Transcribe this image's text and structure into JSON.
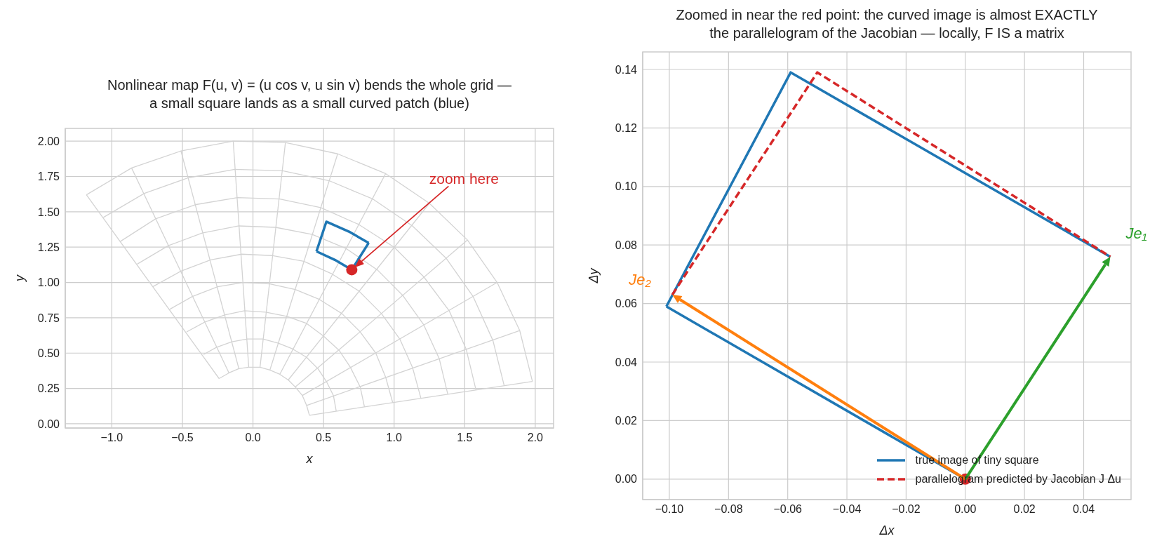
{
  "chart_data": [
    {
      "type": "line",
      "title": "Nonlinear map F(u, v) = (u cos v,  u sin v) bends the whole grid —\na small square lands as a small curved patch (blue)",
      "xlabel": "x",
      "ylabel": "y",
      "xlim": [
        -1.33,
        2.13
      ],
      "ylim": [
        -0.03,
        2.09
      ],
      "xticks": [
        {
          "value": -1,
          "label": "−1.0"
        },
        {
          "value": -0.5,
          "label": "−0.5"
        },
        {
          "value": 0,
          "label": "0.0"
        },
        {
          "value": 0.5,
          "label": "0.5"
        },
        {
          "value": 1,
          "label": "1.0"
        },
        {
          "value": 1.5,
          "label": "1.5"
        },
        {
          "value": 2,
          "label": "2.0"
        }
      ],
      "yticks": [
        {
          "value": 0,
          "label": "0.00"
        },
        {
          "value": 0.25,
          "label": "0.25"
        },
        {
          "value": 0.5,
          "label": "0.50"
        },
        {
          "value": 0.75,
          "label": "0.75"
        },
        {
          "value": 1,
          "label": "1.00"
        },
        {
          "value": 1.25,
          "label": "1.25"
        },
        {
          "value": 1.5,
          "label": "1.50"
        },
        {
          "value": 1.75,
          "label": "1.75"
        },
        {
          "value": 2,
          "label": "2.00"
        }
      ],
      "grid": true,
      "legend": false,
      "marker": "none",
      "line_style": "solid",
      "annotations": [
        "zoom here"
      ],
      "series": [
        {
          "color": "#d3d3d3",
          "x": [
            0.4,
            0.38,
            0.35,
            0.3,
            0.25,
            0.19,
            0.12,
            0.05,
            -0.03,
            -0.1,
            -0.17,
            -0.24
          ],
          "values": [
            0.06,
            0.13,
            0.2,
            0.26,
            0.31,
            0.35,
            0.38,
            0.4,
            0.4,
            0.39,
            0.36,
            0.32
          ]
        },
        {
          "color": "#d3d3d3",
          "x": [
            0.59,
            0.57,
            0.52,
            0.46,
            0.38,
            0.28,
            0.18,
            0.07,
            -0.04,
            -0.15,
            -0.26,
            -0.35
          ],
          "values": [
            0.09,
            0.2,
            0.3,
            0.39,
            0.47,
            0.53,
            0.57,
            0.6,
            0.6,
            0.58,
            0.54,
            0.49
          ]
        },
        {
          "color": "#d3d3d3",
          "x": [
            0.79,
            0.76,
            0.69,
            0.61,
            0.5,
            0.38,
            0.24,
            0.09,
            -0.06,
            -0.2,
            -0.34,
            -0.47
          ],
          "values": [
            0.12,
            0.26,
            0.4,
            0.52,
            0.62,
            0.71,
            0.76,
            0.79,
            0.8,
            0.77,
            0.72,
            0.65
          ]
        },
        {
          "color": "#d3d3d3",
          "x": [
            0.99,
            0.94,
            0.87,
            0.76,
            0.63,
            0.47,
            0.3,
            0.12,
            -0.07,
            -0.25,
            -0.43,
            -0.59
          ],
          "values": [
            0.15,
            0.33,
            0.5,
            0.65,
            0.78,
            0.88,
            0.95,
            0.99,
            1.0,
            0.97,
            0.9,
            0.81
          ]
        },
        {
          "color": "#d3d3d3",
          "x": [
            1.19,
            1.13,
            1.04,
            0.91,
            0.75,
            0.56,
            0.36,
            0.14,
            -0.08,
            -0.3,
            -0.51,
            -0.71
          ],
          "values": [
            0.18,
            0.4,
            0.6,
            0.78,
            0.94,
            1.06,
            1.15,
            1.19,
            1.2,
            1.16,
            1.08,
            0.97
          ]
        },
        {
          "color": "#d3d3d3",
          "x": [
            1.38,
            1.32,
            1.21,
            1.06,
            0.88,
            0.66,
            0.42,
            0.16,
            -0.1,
            -0.36,
            -0.6,
            -0.82
          ],
          "values": [
            0.21,
            0.46,
            0.7,
            0.91,
            1.09,
            1.24,
            1.34,
            1.39,
            1.4,
            1.35,
            1.26,
            1.13
          ]
        },
        {
          "color": "#d3d3d3",
          "x": [
            1.58,
            1.51,
            1.39,
            1.21,
            1.0,
            0.75,
            0.48,
            0.19,
            -0.11,
            -0.41,
            -0.69,
            -0.94
          ],
          "values": [
            0.24,
            0.53,
            0.8,
            1.04,
            1.25,
            1.41,
            1.53,
            1.59,
            1.6,
            1.55,
            1.45,
            1.29
          ]
        },
        {
          "color": "#d3d3d3",
          "x": [
            1.78,
            1.7,
            1.56,
            1.37,
            1.13,
            0.85,
            0.54,
            0.21,
            -0.13,
            -0.46,
            -0.77,
            -1.06
          ],
          "values": [
            0.27,
            0.59,
            0.9,
            1.17,
            1.4,
            1.59,
            1.72,
            1.79,
            1.8,
            1.74,
            1.63,
            1.46
          ]
        },
        {
          "color": "#d3d3d3",
          "x": [
            1.98,
            1.89,
            1.73,
            1.52,
            1.25,
            0.94,
            0.6,
            0.23,
            -0.14,
            -0.51,
            -0.86,
            -1.18
          ],
          "values": [
            0.3,
            0.66,
            1.0,
            1.3,
            1.56,
            1.77,
            1.91,
            1.99,
            2.0,
            1.93,
            1.81,
            1.62
          ]
        },
        {
          "color": "#d3d3d3",
          "x": [
            0.4,
            1.98
          ],
          "values": [
            0.06,
            0.3
          ]
        },
        {
          "color": "#d3d3d3",
          "x": [
            0.38,
            1.89
          ],
          "values": [
            0.13,
            0.66
          ]
        },
        {
          "color": "#d3d3d3",
          "x": [
            0.35,
            1.73
          ],
          "values": [
            0.2,
            1.0
          ]
        },
        {
          "color": "#d3d3d3",
          "x": [
            0.3,
            1.52
          ],
          "values": [
            0.26,
            1.3
          ]
        },
        {
          "color": "#d3d3d3",
          "x": [
            0.25,
            1.25
          ],
          "values": [
            0.31,
            1.56
          ]
        },
        {
          "color": "#d3d3d3",
          "x": [
            0.19,
            0.94
          ],
          "values": [
            0.35,
            1.77
          ]
        },
        {
          "color": "#d3d3d3",
          "x": [
            0.12,
            0.6
          ],
          "values": [
            0.38,
            1.91
          ]
        },
        {
          "color": "#d3d3d3",
          "x": [
            0.05,
            0.23
          ],
          "values": [
            0.4,
            1.99
          ]
        },
        {
          "color": "#d3d3d3",
          "x": [
            -0.03,
            -0.14
          ],
          "values": [
            0.4,
            2.0
          ]
        },
        {
          "color": "#d3d3d3",
          "x": [
            -0.1,
            -0.51
          ],
          "values": [
            0.39,
            1.93
          ]
        },
        {
          "color": "#d3d3d3",
          "x": [
            -0.17,
            -0.86
          ],
          "values": [
            0.36,
            1.81
          ]
        },
        {
          "color": "#d3d3d3",
          "x": [
            -0.24,
            -1.18
          ],
          "values": [
            0.32,
            1.62
          ]
        },
        {
          "color": "#1f77b4",
          "x": [
            0.45,
            0.52,
            0.68,
            0.82
          ],
          "values": [
            1.22,
            1.43,
            1.36,
            1.28
          ]
        },
        {
          "color": "#1f77b4",
          "x": [
            0.45,
            0.58,
            0.7,
            0.82
          ],
          "values": [
            1.22,
            1.16,
            1.09,
            1.28
          ]
        },
        {
          "type": "scatter",
          "marker": "circle",
          "color": "#d62728",
          "x": [
            0.7
          ],
          "values": [
            1.09
          ]
        }
      ]
    },
    {
      "type": "line",
      "title": "Zoomed in near the red point: the curved image is almost EXACTLY\nthe parallelogram of the Jacobian — locally, F IS a matrix",
      "xlabel": "Δx",
      "ylabel": "Δy",
      "xlim": [
        -0.109,
        0.056
      ],
      "ylim": [
        -0.007,
        0.146
      ],
      "xticks": [
        {
          "value": -0.1,
          "label": "−0.10"
        },
        {
          "value": -0.08,
          "label": "−0.08"
        },
        {
          "value": -0.06,
          "label": "−0.06"
        },
        {
          "value": -0.04,
          "label": "−0.04"
        },
        {
          "value": -0.02,
          "label": "−0.02"
        },
        {
          "value": 0,
          "label": "0.00"
        },
        {
          "value": 0.02,
          "label": "0.02"
        },
        {
          "value": 0.04,
          "label": "0.04"
        }
      ],
      "yticks": [
        {
          "value": 0,
          "label": "0.00"
        },
        {
          "value": 0.02,
          "label": "0.02"
        },
        {
          "value": 0.04,
          "label": "0.04"
        },
        {
          "value": 0.06,
          "label": "0.06"
        },
        {
          "value": 0.08,
          "label": "0.08"
        },
        {
          "value": 0.1,
          "label": "0.10"
        },
        {
          "value": 0.12,
          "label": "0.12"
        },
        {
          "value": 0.14,
          "label": "0.14"
        }
      ],
      "grid": true,
      "legend": "bottom right",
      "marker": "none",
      "annotations": [
        {
          "text": "Je₁",
          "x": 0.049,
          "y": 0.076
        },
        {
          "text": "Je₂",
          "x": -0.099,
          "y": 0.063
        }
      ],
      "series": [
        {
          "name": "true image of tiny square",
          "color": "#1f77b4",
          "x": [
            -0.101,
            -0.059,
            0.049
          ],
          "values": [
            0.059,
            0.139,
            0.076
          ]
        },
        {
          "color": "#1f77b4",
          "x": [
            -0.101,
            0
          ],
          "values": [
            0.059,
            0
          ]
        },
        {
          "name": "parallelogram predicted by Jacobian J Δu",
          "color": "#d62728",
          "line_style": "dashed",
          "x": [
            -0.099,
            -0.05,
            0.049
          ],
          "values": [
            0.063,
            0.139,
            0.076
          ]
        },
        {
          "type": "scatter",
          "marker": "circle",
          "color": "#d62728",
          "x": [
            0
          ],
          "values": [
            0
          ]
        }
      ]
    }
  ]
}
